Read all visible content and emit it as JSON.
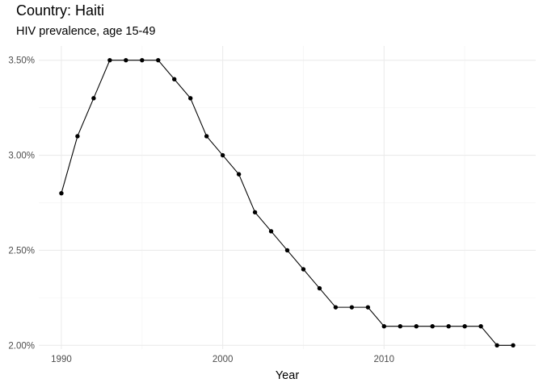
{
  "chart_data": {
    "type": "line",
    "title": "Country: Haiti",
    "subtitle": "HIV prevalence, age 15-49",
    "xlabel": "Year",
    "ylabel": "",
    "xlim": [
      1988.6,
      2019.4
    ],
    "ylim": [
      1.98,
      3.575
    ],
    "x_ticks": [
      1990,
      2000,
      2010
    ],
    "x_minor_ticks": [
      1995,
      2005,
      2015
    ],
    "y_ticks": [
      2.0,
      2.5,
      3.0,
      3.5
    ],
    "y_tick_labels": [
      "2.00%",
      "2.50%",
      "3.00%",
      "3.50%"
    ],
    "y_minor_ticks": [
      2.25,
      2.75,
      3.25
    ],
    "x_tick_labels": [
      "1990",
      "2000",
      "2010"
    ],
    "grid": true,
    "legend": "none",
    "line_color": "#000000",
    "point_color": "#000000",
    "series": [
      {
        "x": [
          1990,
          1991,
          1992,
          1993,
          1994,
          1995,
          1996,
          1997,
          1998,
          1999,
          2000,
          2001,
          2002,
          2003,
          2004,
          2005,
          2006,
          2007,
          2008,
          2009,
          2010,
          2011,
          2012,
          2013,
          2014,
          2015,
          2016,
          2017,
          2018
        ],
        "values": [
          2.8,
          3.1,
          3.3,
          3.5,
          3.5,
          3.5,
          3.5,
          3.4,
          3.3,
          3.1,
          3.0,
          2.9,
          2.7,
          2.6,
          2.5,
          2.4,
          2.3,
          2.2,
          2.2,
          2.2,
          2.1,
          2.1,
          2.1,
          2.1,
          2.1,
          2.1,
          2.1,
          2.0,
          2.0
        ]
      }
    ]
  }
}
